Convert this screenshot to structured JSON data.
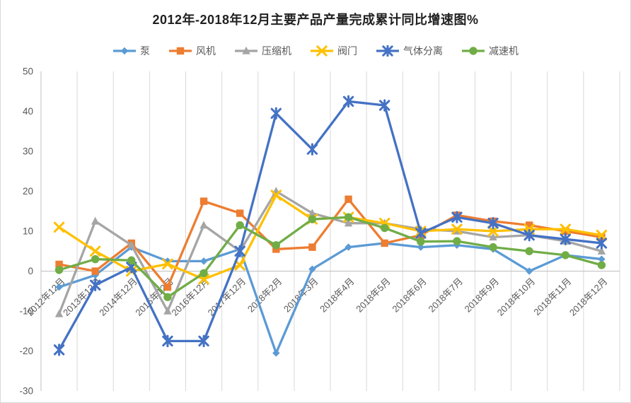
{
  "title": "2012年-2018年12月主要产品产量完成累计同比增速图%",
  "chart_data": {
    "type": "line",
    "title": "2012年-2018年12月主要产品产量完成累计同比增速图%",
    "categories": [
      "2012年12月",
      "2013年12月",
      "2014年12月",
      "2015年12月",
      "2016年12月",
      "2017年12月",
      "2018年2月",
      "2018年3月",
      "2018年4月",
      "2018年5月",
      "2018年6月",
      "2018年7月",
      "2018年9月",
      "2018年10月",
      "2018年11月",
      "2018年12月"
    ],
    "series": [
      {
        "name": "泵",
        "color": "#5B9BD5",
        "marker": "diamond",
        "values": [
          -4,
          -1,
          6,
          2.5,
          2.5,
          5.5,
          -20.5,
          0.5,
          6,
          7,
          6,
          6.5,
          5.5,
          0,
          4,
          3
        ]
      },
      {
        "name": "风机",
        "color": "#ED7D31",
        "marker": "square",
        "values": [
          1.7,
          0,
          7,
          -4,
          17.5,
          14.5,
          5.5,
          6,
          18,
          7,
          9,
          14,
          12.5,
          11.5,
          10,
          8.5
        ]
      },
      {
        "name": "压缩机",
        "color": "#A5A5A5",
        "marker": "triangle",
        "values": [
          -10.7,
          12.5,
          6.5,
          -10,
          11.5,
          5,
          20,
          14.5,
          12,
          12,
          10.5,
          10,
          8.5,
          9,
          7.5,
          5
        ]
      },
      {
        "name": "阀门",
        "color": "#FFC000",
        "marker": "x",
        "values": [
          11,
          5,
          0,
          1.8,
          -2,
          1.5,
          19,
          13,
          13.5,
          12,
          10,
          10.5,
          10,
          10.5,
          10.5,
          9
        ]
      },
      {
        "name": "气体分离",
        "color": "#4472C4",
        "marker": "asterisk",
        "values": [
          -19.7,
          -3.5,
          1,
          -17.5,
          -17.5,
          5,
          39.5,
          30.5,
          42.5,
          41.5,
          9.5,
          13.5,
          12,
          9,
          8,
          7
        ]
      },
      {
        "name": "减速机",
        "color": "#70AD47",
        "marker": "circle",
        "values": [
          0.3,
          3,
          2.7,
          -6.5,
          -0.5,
          11.5,
          6.5,
          13,
          13.5,
          10.8,
          7.4,
          7.5,
          6,
          5,
          4,
          1.5
        ]
      }
    ],
    "ylim": [
      -30,
      50
    ],
    "yticks": [
      50,
      40,
      30,
      20,
      10,
      0,
      -10,
      -20,
      -30
    ],
    "grid": "vertical",
    "legend_position": "top",
    "axis_color": "#bfbfbf",
    "grid_color": "#d9d9d9",
    "tick_label_color": "#595959"
  }
}
